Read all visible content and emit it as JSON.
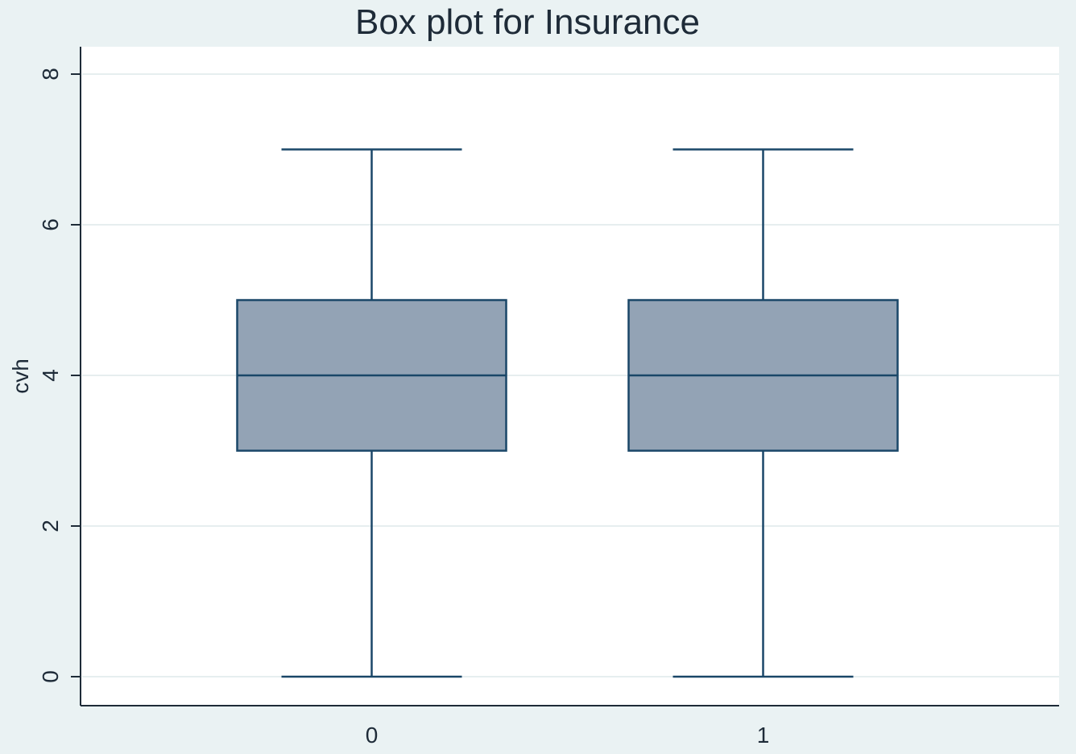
{
  "chart_data": {
    "type": "box",
    "title": "Box plot for Insurance",
    "ylabel": "cvh",
    "xlabel": "",
    "ylim": [
      0,
      8
    ],
    "yticks": [
      0,
      2,
      4,
      6,
      8
    ],
    "grid": true,
    "categories": [
      "0",
      "1"
    ],
    "boxes": [
      {
        "category": "0",
        "min": 0,
        "q1": 3,
        "median": 4,
        "q3": 5,
        "max": 7
      },
      {
        "category": "1",
        "min": 0,
        "q1": 3,
        "median": 4,
        "q3": 5,
        "max": 7
      }
    ],
    "colors": {
      "background": "#eaf2f3",
      "plot_area": "#ffffff",
      "box_fill": "#93a3b5",
      "box_stroke": "#1a4768",
      "grid": "#e6eeef",
      "text": "#1e2b38"
    }
  }
}
